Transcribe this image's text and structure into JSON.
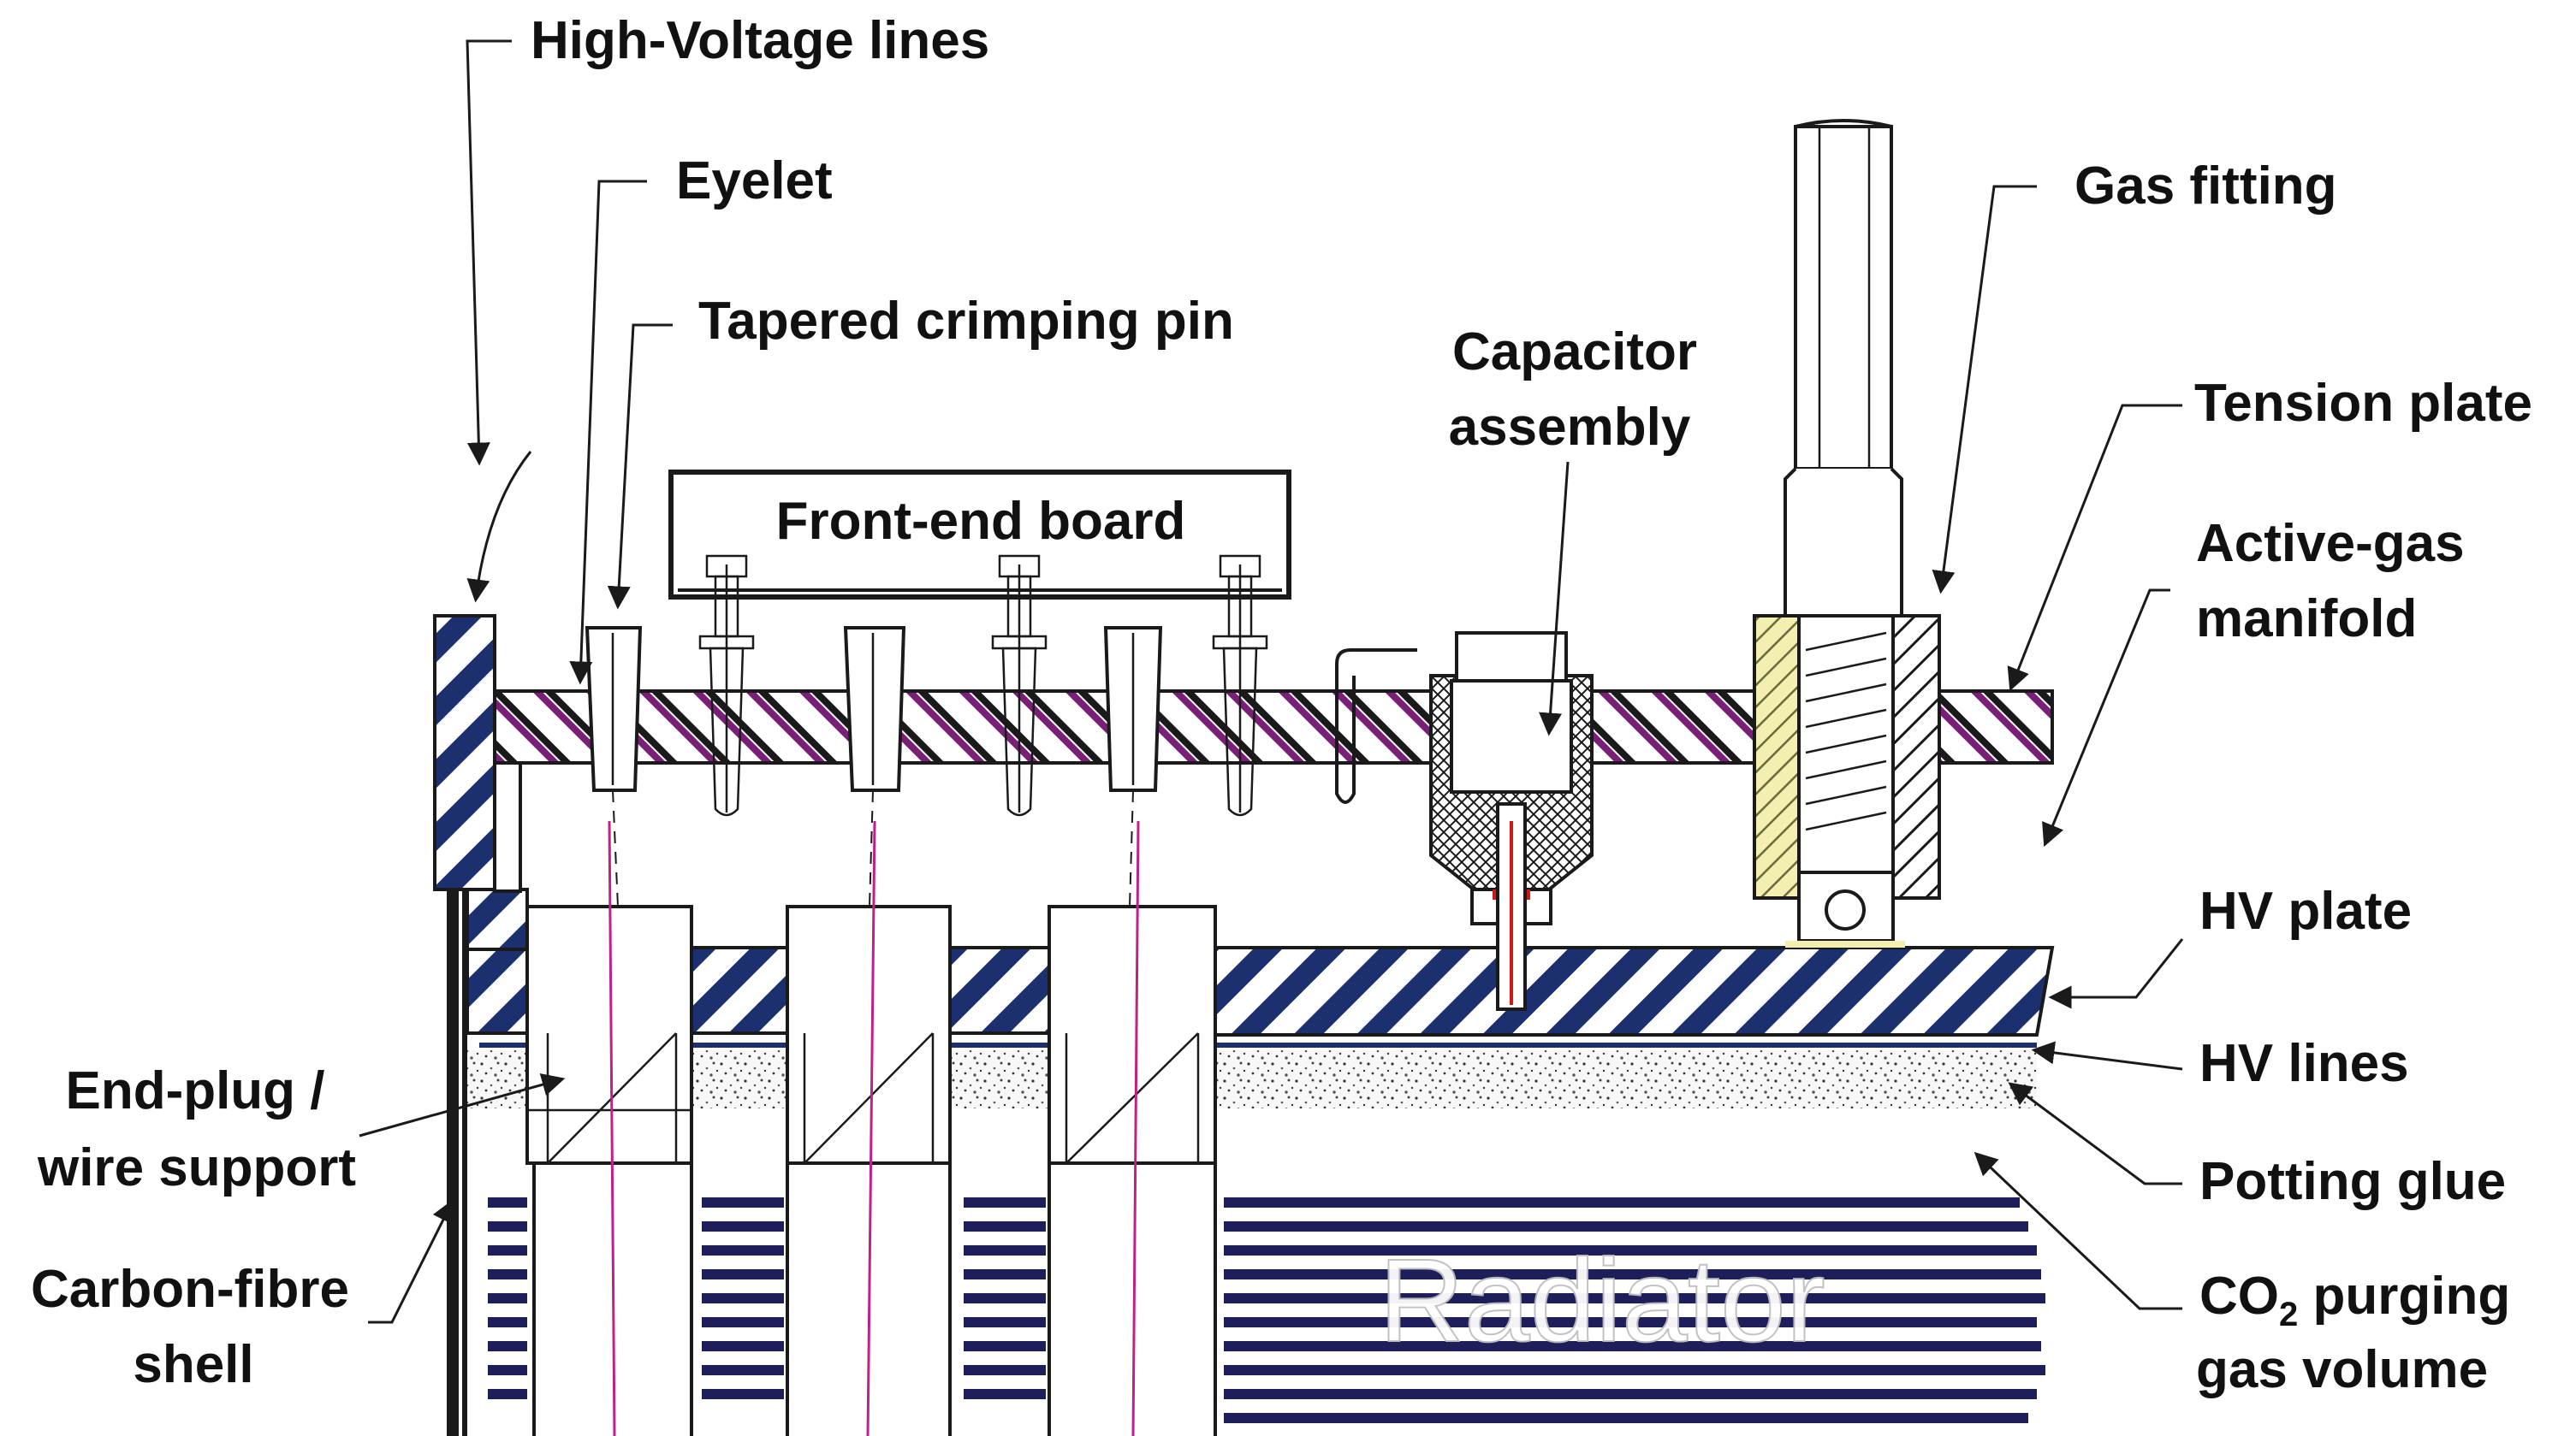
{
  "labels": {
    "high_voltage_lines": "High-Voltage lines",
    "eyelet": "Eyelet",
    "tapered_crimping_pin": "Tapered crimping pin",
    "front_end_board": "Front-end board",
    "capacitor_line1": "Capacitor",
    "capacitor_line2": "assembly",
    "gas_fitting": "Gas fitting",
    "tension_plate": "Tension plate",
    "active_gas_line1": "Active-gas",
    "active_gas_line2": "manifold",
    "hv_plate": "HV plate",
    "hv_lines": "HV lines",
    "potting_glue": "Potting glue",
    "co2_prefix": "CO",
    "co2_sub": "2",
    "co2_suffix": " purging",
    "co2_line2": "gas volume",
    "end_plug_line1": "End-plug /",
    "end_plug_line2": "wire support",
    "carbon_fibre_line1": "Carbon-fibre",
    "carbon_fibre_line2": "shell",
    "radiator": "Radiator"
  },
  "colors": {
    "hv_blue": "#1c2f6e",
    "tension_purple": "#7a1f78",
    "radiator_navy": "#1e1f5a",
    "fitting_yellow": "#f2efb0",
    "wire_magenta": "#c0208a",
    "capacitor_red": "#d01818"
  }
}
